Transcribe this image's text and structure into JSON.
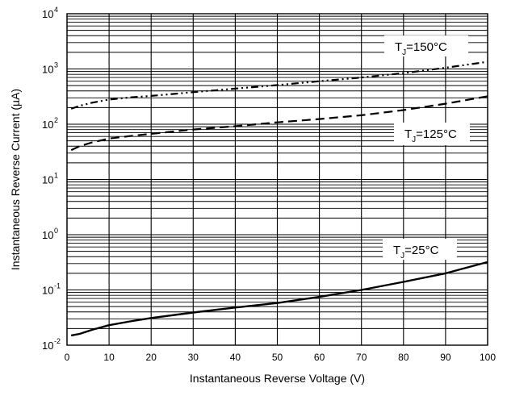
{
  "chart_data": {
    "type": "line",
    "title": "",
    "xlabel": "Instantaneous Reverse Voltage (V)",
    "ylabel": "Instantaneous Reverse Current (µA)",
    "x_ticks": [
      "0",
      "10",
      "20",
      "30",
      "40",
      "50",
      "60",
      "70",
      "80",
      "90",
      "100"
    ],
    "y_ticks": [
      {
        "base": "10",
        "exp": "-2",
        "value": 0.01
      },
      {
        "base": "10",
        "exp": "-1",
        "value": 0.1
      },
      {
        "base": "10",
        "exp": "0",
        "value": 1
      },
      {
        "base": "10",
        "exp": "1",
        "value": 10
      },
      {
        "base": "10",
        "exp": "2",
        "value": 100
      },
      {
        "base": "10",
        "exp": "3",
        "value": 1000
      },
      {
        "base": "10",
        "exp": "4",
        "value": 10000
      }
    ],
    "xlim": [
      0,
      100
    ],
    "ylim": [
      0.01,
      10000
    ],
    "yscale": "log",
    "grid": true,
    "series": [
      {
        "name": "TJ=150°C",
        "label_main": "T",
        "label_sub": "J",
        "label_rest": "=150°C",
        "style": "dash-dot-dot",
        "x": [
          1,
          3,
          6,
          10,
          15,
          20,
          30,
          40,
          50,
          60,
          70,
          80,
          90,
          100
        ],
        "y": [
          190,
          215,
          245,
          280,
          305,
          325,
          380,
          440,
          510,
          600,
          700,
          840,
          1050,
          1350
        ]
      },
      {
        "name": "TJ=125°C",
        "label_main": "T",
        "label_sub": "J",
        "label_rest": "=125°C",
        "style": "dash",
        "x": [
          1,
          3,
          6,
          10,
          15,
          20,
          30,
          40,
          50,
          60,
          70,
          80,
          90,
          100
        ],
        "y": [
          34,
          40,
          47,
          55,
          61,
          67,
          80,
          92,
          108,
          124,
          145,
          180,
          235,
          320
        ]
      },
      {
        "name": "TJ=25°C",
        "label_main": "T",
        "label_sub": "J",
        "label_rest": "=25°C",
        "style": "solid",
        "x": [
          1,
          3,
          6,
          10,
          15,
          20,
          30,
          40,
          50,
          60,
          70,
          80,
          90,
          100
        ],
        "y": [
          0.015,
          0.016,
          0.019,
          0.023,
          0.027,
          0.031,
          0.039,
          0.048,
          0.058,
          0.075,
          0.1,
          0.14,
          0.2,
          0.32
        ]
      }
    ],
    "colors": {
      "line": "#000000",
      "grid": "#000000",
      "background": "#ffffff"
    }
  }
}
